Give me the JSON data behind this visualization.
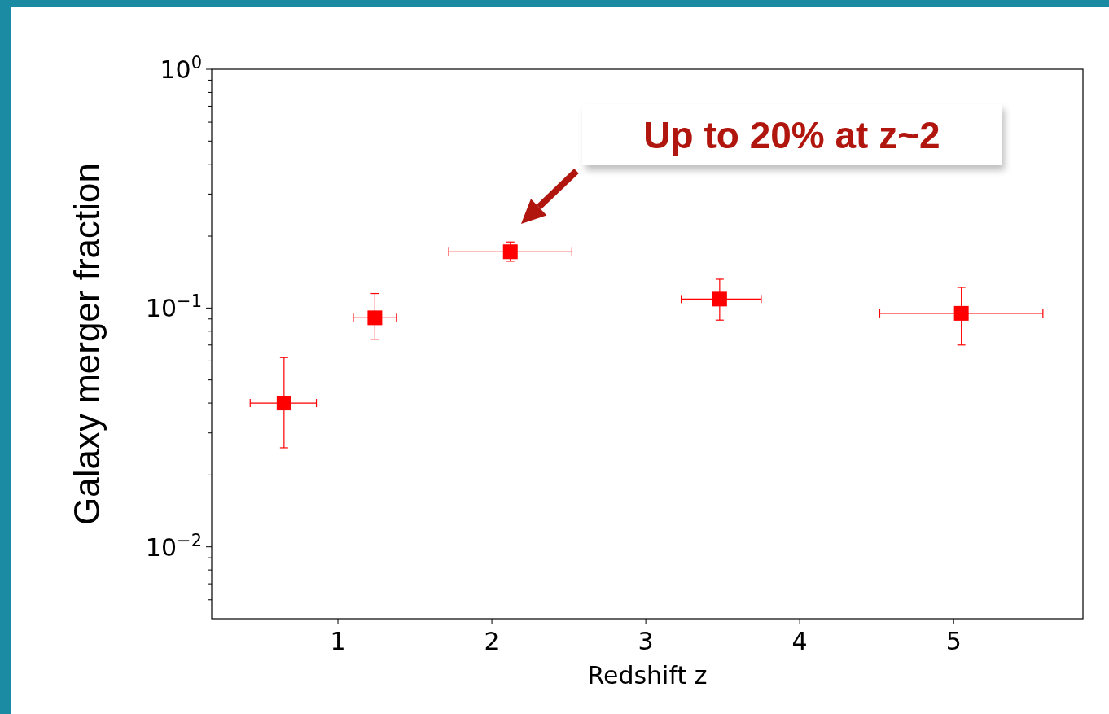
{
  "chart_data": {
    "type": "scatter",
    "xlabel": "Redshift z",
    "ylabel": "Galaxy merger fraction",
    "marker": "square",
    "log": "y",
    "xlim": [
      0.18,
      5.84
    ],
    "xticks": [
      1,
      2,
      3,
      4,
      5
    ],
    "ylim": [
      0.005,
      1
    ],
    "yticks": [
      {
        "value": 0.006,
        "label": null
      },
      {
        "value": 0.007,
        "label": null
      },
      {
        "value": 0.008,
        "label": null
      },
      {
        "value": 0.009,
        "label": null
      },
      {
        "value": 0.01,
        "label": "10$^{−2}$"
      },
      {
        "value": 0.02,
        "label": null
      },
      {
        "value": 0.03,
        "label": null
      },
      {
        "value": 0.04,
        "label": null
      },
      {
        "value": 0.05,
        "label": null
      },
      {
        "value": 0.06,
        "label": null
      },
      {
        "value": 0.07,
        "label": null
      },
      {
        "value": 0.08,
        "label": null
      },
      {
        "value": 0.09,
        "label": null
      },
      {
        "value": 0.1,
        "label": "10$^{−1}$"
      },
      {
        "value": 0.2,
        "label": null
      },
      {
        "value": 0.3,
        "label": null
      },
      {
        "value": 0.4,
        "label": null
      },
      {
        "value": 0.5,
        "label": null
      },
      {
        "value": 0.6,
        "label": null
      },
      {
        "value": 0.7,
        "label": null
      },
      {
        "value": 0.8,
        "label": null
      },
      {
        "value": 0.9,
        "label": null
      },
      {
        "value": 1,
        "label": "10$^{0}$"
      }
    ],
    "series": [
      {
        "color": "#ff0000",
        "x": [
          0.65,
          1.24,
          2.12,
          3.48,
          5.05
        ],
        "values": [
          0.04,
          0.091,
          0.172,
          0.109,
          0.095
        ],
        "errors": [
          [
            0.026,
            0.062
          ],
          [
            0.074,
            0.115
          ],
          [
            0.157,
            0.189
          ],
          [
            0.089,
            0.132
          ],
          [
            0.07,
            0.122
          ]
        ],
        "xerrors": [
          [
            0.43,
            0.86
          ],
          [
            1.1,
            1.38
          ],
          [
            1.72,
            2.52
          ],
          [
            3.23,
            3.75
          ],
          [
            4.52,
            5.58
          ]
        ]
      }
    ],
    "annotations": [
      "Up to 20% at z~2"
    ]
  }
}
